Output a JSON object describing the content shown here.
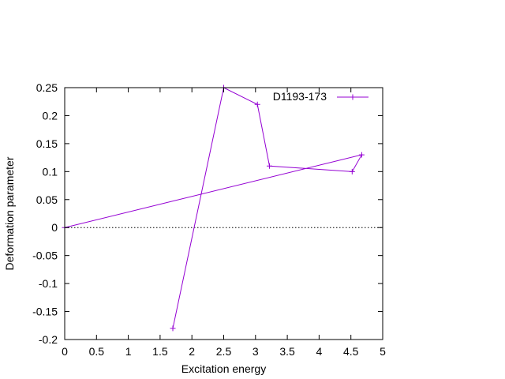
{
  "chart_data": {
    "type": "line",
    "title": "",
    "xlabel": "Excitation energy",
    "ylabel": "Deformation parameter",
    "xlim": [
      0,
      5
    ],
    "ylim": [
      -0.2,
      0.25
    ],
    "xticks": [
      0,
      0.5,
      1,
      1.5,
      2,
      2.5,
      3,
      3.5,
      4,
      4.5,
      5
    ],
    "xtick_labels": [
      "0",
      "0.5",
      "1",
      "1.5",
      "2",
      "2.5",
      "3",
      "3.5",
      "4",
      "4.5",
      "5"
    ],
    "yticks": [
      -0.2,
      -0.15,
      -0.1,
      -0.05,
      0,
      0.05,
      0.1,
      0.15,
      0.2,
      0.25
    ],
    "ytick_labels": [
      "-0.2",
      "-0.15",
      "-0.1",
      "-0.05",
      "0",
      "0.05",
      "0.1",
      "0.15",
      "0.2",
      "0.25"
    ],
    "grid": false,
    "zero_line": {
      "y": 0,
      "style": "dotted",
      "color": "#000000"
    },
    "legend_position": "top-right",
    "series": [
      {
        "name": "D1193-173",
        "color": "#9400d3",
        "marker": "plus",
        "x": [
          0,
          4.67,
          4.52,
          3.22,
          3.03,
          2.5,
          1.7
        ],
        "y": [
          0,
          0.13,
          0.1,
          0.11,
          0.22,
          0.25,
          -0.18
        ]
      }
    ]
  }
}
